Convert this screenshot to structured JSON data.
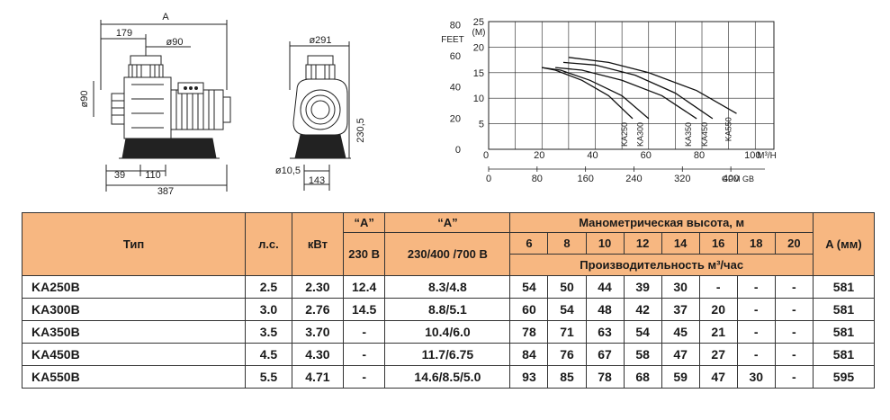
{
  "drawings": {
    "side_view": {
      "dim_overall": "A",
      "dim_179": "179",
      "dim_outlet_dia": "ø90",
      "dim_height_dia": "ø90",
      "dim_39": "39",
      "dim_110": "110",
      "dim_387": "387"
    },
    "front_view": {
      "dim_width": "ø291",
      "dim_height": "230,5",
      "dim_hole": "ø10,5",
      "dim_143": "143"
    }
  },
  "chart_data": {
    "type": "line",
    "y_left_outer_label": "FEET",
    "y_left_inner_label": "(M)",
    "y_feet_ticks": [
      "80",
      "60",
      "40",
      "20",
      "0"
    ],
    "y_m_ticks": [
      "25",
      "20",
      "15",
      "10",
      "5"
    ],
    "x_top_label": "M³/H",
    "x_top_ticks": [
      "0",
      "20",
      "40",
      "60",
      "80",
      "100"
    ],
    "x_bottom_label": "GPM GB",
    "x_bottom_ticks": [
      "0",
      "80",
      "160",
      "240",
      "320",
      "400"
    ],
    "xlim": [
      0,
      107
    ],
    "ylim_m": [
      0,
      25
    ],
    "grid": true,
    "series": [
      {
        "name": "KA250",
        "x": [
          20,
          25,
          35,
          45,
          54
        ],
        "y": [
          16,
          15.5,
          13.5,
          10.5,
          6
        ]
      },
      {
        "name": "KA300",
        "x": [
          20,
          27,
          38,
          50,
          60
        ],
        "y": [
          16,
          15.5,
          13.5,
          10.5,
          6
        ]
      },
      {
        "name": "KA350",
        "x": [
          25,
          35,
          50,
          65,
          78
        ],
        "y": [
          16,
          15.5,
          13.5,
          10.5,
          6
        ]
      },
      {
        "name": "KA450",
        "x": [
          28,
          40,
          55,
          70,
          84
        ],
        "y": [
          17,
          16.5,
          14.5,
          11,
          6
        ]
      },
      {
        "name": "KA550",
        "x": [
          30,
          45,
          60,
          78,
          93
        ],
        "y": [
          18,
          17,
          15,
          11.5,
          7
        ]
      }
    ]
  },
  "table": {
    "header": {
      "type": "Тип",
      "hp": "л.с.",
      "kw": "кВт",
      "a_quote_1": "“A”",
      "a_quote_2": "“A”",
      "v230": "230 В",
      "v400": "230/400 /700 В",
      "head_title": "Манометрическая высота, м",
      "flow_title": "Производительность м³/час",
      "a_mm": "A (мм)",
      "heads": [
        "6",
        "8",
        "10",
        "12",
        "14",
        "16",
        "18",
        "20"
      ]
    },
    "rows": [
      {
        "model": "KA250B",
        "hp": "2.5",
        "kw": "2.30",
        "a230": "12.4",
        "a400": "8.3/4.8",
        "flows": [
          "54",
          "50",
          "44",
          "39",
          "30",
          "-",
          "-",
          "-"
        ],
        "a": "581"
      },
      {
        "model": "KA300B",
        "hp": "3.0",
        "kw": "2.76",
        "a230": "14.5",
        "a400": "8.8/5.1",
        "flows": [
          "60",
          "54",
          "48",
          "42",
          "37",
          "20",
          "-",
          "-"
        ],
        "a": "581"
      },
      {
        "model": "KA350B",
        "hp": "3.5",
        "kw": "3.70",
        "a230": "-",
        "a400": "10.4/6.0",
        "flows": [
          "78",
          "71",
          "63",
          "54",
          "45",
          "21",
          "-",
          "-"
        ],
        "a": "581"
      },
      {
        "model": "KA450B",
        "hp": "4.5",
        "kw": "4.30",
        "a230": "-",
        "a400": "11.7/6.75",
        "flows": [
          "84",
          "76",
          "67",
          "58",
          "47",
          "27",
          "-",
          "-"
        ],
        "a": "581"
      },
      {
        "model": "KA550B",
        "hp": "5.5",
        "kw": "4.71",
        "a230": "-",
        "a400": "14.6/8.5/5.0",
        "flows": [
          "93",
          "85",
          "78",
          "68",
          "59",
          "47",
          "30",
          "-"
        ],
        "a": "595"
      }
    ]
  }
}
